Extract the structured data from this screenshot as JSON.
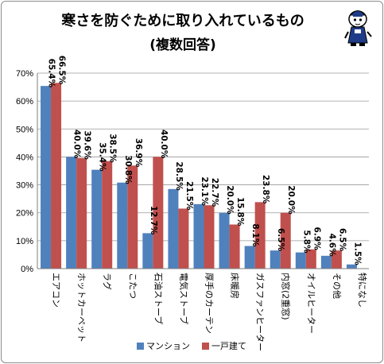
{
  "chart_data": {
    "type": "bar",
    "title": "寒さを防ぐために取り入れているもの",
    "subtitle": "(複数回答)",
    "categories": [
      "エアコン",
      "ホットカーペット",
      "ラグ",
      "こたつ",
      "石油ストーブ",
      "電気ストーブ",
      "厚手のカーテン",
      "床暖房",
      "ガスファンヒーター",
      "内窓(2重窓)",
      "オイルヒーター",
      "その他",
      "特になし"
    ],
    "series": [
      {
        "name": "マンション",
        "color": "#4f81bd",
        "values": [
          65.4,
          40.0,
          35.4,
          30.8,
          12.7,
          28.5,
          23.1,
          20.0,
          8.1,
          6.5,
          5.8,
          4.6,
          1.5
        ]
      },
      {
        "name": "一戸建て",
        "color": "#c0504d",
        "values": [
          66.5,
          39.6,
          38.5,
          36.9,
          40.0,
          21.5,
          22.7,
          15.8,
          23.8,
          20.0,
          6.9,
          6.5,
          null
        ]
      }
    ],
    "data_labels": [
      [
        "65.4%",
        "40.0%",
        "35.4%",
        "30.8%",
        "12.7%",
        "28.5%",
        "23.1%",
        "20.0%",
        "8.1%",
        "6.5%",
        "5.8%",
        "4.6%",
        "1.5%"
      ],
      [
        "66.5%",
        "39.6%",
        "38.5%",
        "36.9%",
        "40.0%",
        "21.5%",
        "22.7%",
        "15.8%",
        "23.8%",
        "20.0%",
        "6.9%",
        "6.5%",
        ""
      ]
    ],
    "y_ticks": [
      "0%",
      "10%",
      "20%",
      "30%",
      "40%",
      "50%",
      "60%",
      "70%"
    ],
    "ylim": [
      0,
      70
    ],
    "grid": true,
    "legend_position": "bottom"
  },
  "mascot_icon": "cartoon-character-icon"
}
